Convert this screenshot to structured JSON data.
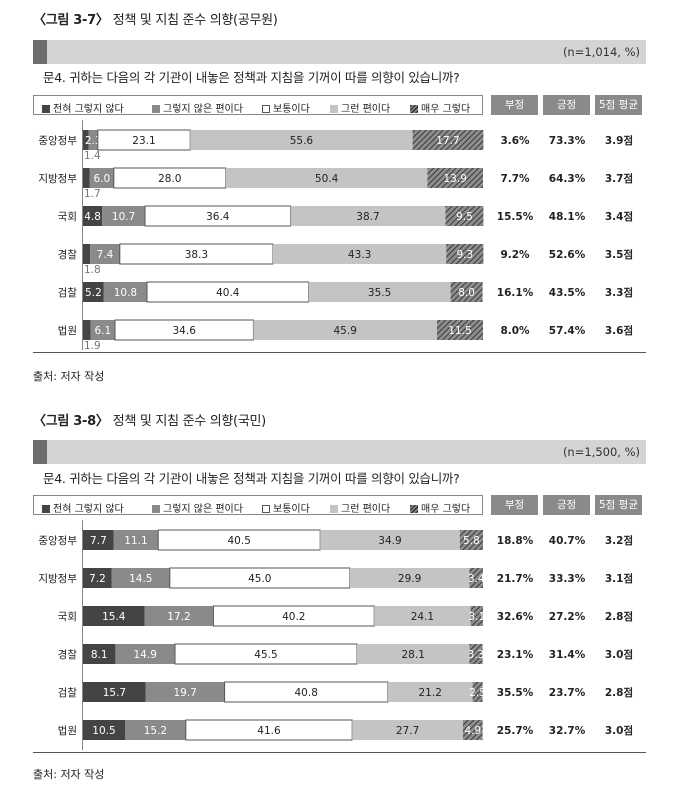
{
  "legend_labels": [
    "전혀 그렇지 않다",
    "그렇지 않은 편이다",
    "보통이다",
    "그런 편이다",
    "매우 그렇다"
  ],
  "header_labels": [
    "부정",
    "긍정",
    "5점 평균"
  ],
  "figures": [
    {
      "title_open": "〈그림 3-7〉",
      "title_text": "정책 및 지침 준수 의향(공무원)",
      "n": "(n=1,014, %)",
      "question": "문4. 귀하는 다음의 각 기관이 내놓은 정책과 지침을 기꺼이 따를 의향이 있습니까?",
      "source": "출처: 저자 작성"
    },
    {
      "title_open": "〈그림 3-8〉",
      "title_text": "정책 및 지침 준수 의향(국민)",
      "n": "(n=1,500, %)",
      "question": "문4. 귀하는 다음의 각 기관이 내놓은 정책과 지침을 기꺼이 따를 의향이 있습니까?",
      "source": "출처: 저자 작성"
    }
  ],
  "colors": {
    "s1": "#444444",
    "s2": "#8a8a8a",
    "s3": "#ffffff",
    "s4": "#c4c4c4",
    "s5": "#555555",
    "header_bg": "#8a8a8a",
    "band": "#d4d4d4"
  },
  "chart_data": [
    {
      "type": "bar",
      "orientation": "horizontal-stacked-100",
      "title": "정책 및 지침 준수 의향(공무원)",
      "categories": [
        "중앙정부",
        "지방정부",
        "국회",
        "경찰",
        "검찰",
        "법원"
      ],
      "series": [
        {
          "name": "전혀 그렇지 않다",
          "values": [
            1.4,
            1.7,
            4.8,
            1.8,
            5.2,
            1.9
          ],
          "labels": [
            "1.4",
            "1.7",
            "4.8",
            "1.8",
            "5.2",
            "1.9"
          ]
        },
        {
          "name": "그렇지 않은 편이다",
          "values": [
            2.3,
            6.0,
            10.7,
            7.4,
            10.8,
            6.1
          ],
          "labels": [
            "2.3",
            "6.0",
            "10.7",
            "7.4",
            "10.8",
            "6.1"
          ]
        },
        {
          "name": "보통이다",
          "values": [
            23.1,
            28.0,
            36.4,
            38.3,
            40.4,
            34.6
          ],
          "labels": [
            "23.1",
            "28.0",
            "36.4",
            "38.3",
            "40.4",
            "34.6"
          ]
        },
        {
          "name": "그런 편이다",
          "values": [
            55.6,
            50.4,
            38.7,
            43.3,
            35.5,
            45.9
          ],
          "labels": [
            "55.6",
            "50.4",
            "38.7",
            "43.3",
            "35.5",
            "45.9"
          ]
        },
        {
          "name": "매우 그렇다",
          "values": [
            17.7,
            13.9,
            9.5,
            9.3,
            8.0,
            11.5
          ],
          "labels": [
            "17.7",
            "13.9",
            "9.5",
            "9.3",
            "8.0",
            "11.5"
          ]
        }
      ],
      "table": {
        "부정": [
          "3.6%",
          "7.7%",
          "15.5%",
          "9.2%",
          "16.1%",
          "8.0%"
        ],
        "긍정": [
          "73.3%",
          "64.3%",
          "48.1%",
          "52.6%",
          "43.5%",
          "57.4%"
        ],
        "5점 평균": [
          "3.9점",
          "3.7점",
          "3.4점",
          "3.5점",
          "3.3점",
          "3.6점"
        ]
      },
      "xlim": [
        0,
        100
      ]
    },
    {
      "type": "bar",
      "orientation": "horizontal-stacked-100",
      "title": "정책 및 지침 준수 의향(국민)",
      "categories": [
        "중앙정부",
        "지방정부",
        "국회",
        "경찰",
        "검찰",
        "법원"
      ],
      "series": [
        {
          "name": "전혀 그렇지 않다",
          "values": [
            7.7,
            7.2,
            15.4,
            8.1,
            15.7,
            10.5
          ],
          "labels": [
            "7.7",
            "7.2",
            "15.4",
            "8.1",
            "15.7",
            "10.5"
          ]
        },
        {
          "name": "그렇지 않은 편이다",
          "values": [
            11.1,
            14.5,
            17.2,
            14.9,
            19.7,
            15.2
          ],
          "labels": [
            "11.1",
            "14.5",
            "17.2",
            "14.9",
            "19.7",
            "15.2"
          ]
        },
        {
          "name": "보통이다",
          "values": [
            40.5,
            45.0,
            40.2,
            45.5,
            40.8,
            41.6
          ],
          "labels": [
            "40.5",
            "45.0",
            "40.2",
            "45.5",
            "40.8",
            "41.6"
          ]
        },
        {
          "name": "그런 편이다",
          "values": [
            34.9,
            29.9,
            24.1,
            28.1,
            21.2,
            27.7
          ],
          "labels": [
            "34.9",
            "29.9",
            "24.1",
            "28.1",
            "21.2",
            "27.7"
          ]
        },
        {
          "name": "매우 그렇다",
          "values": [
            5.8,
            3.4,
            3.1,
            3.3,
            2.5,
            4.9
          ],
          "labels": [
            "5.8",
            "3.4",
            "3.1",
            "3.3",
            "2.5",
            "4.9"
          ]
        }
      ],
      "table": {
        "부정": [
          "18.8%",
          "21.7%",
          "32.6%",
          "23.1%",
          "35.5%",
          "25.7%"
        ],
        "긍정": [
          "40.7%",
          "33.3%",
          "27.2%",
          "31.4%",
          "23.7%",
          "32.7%"
        ],
        "5점 평균": [
          "3.2점",
          "3.1점",
          "2.8점",
          "3.0점",
          "2.8점",
          "3.0점"
        ]
      },
      "xlim": [
        0,
        100
      ]
    }
  ]
}
